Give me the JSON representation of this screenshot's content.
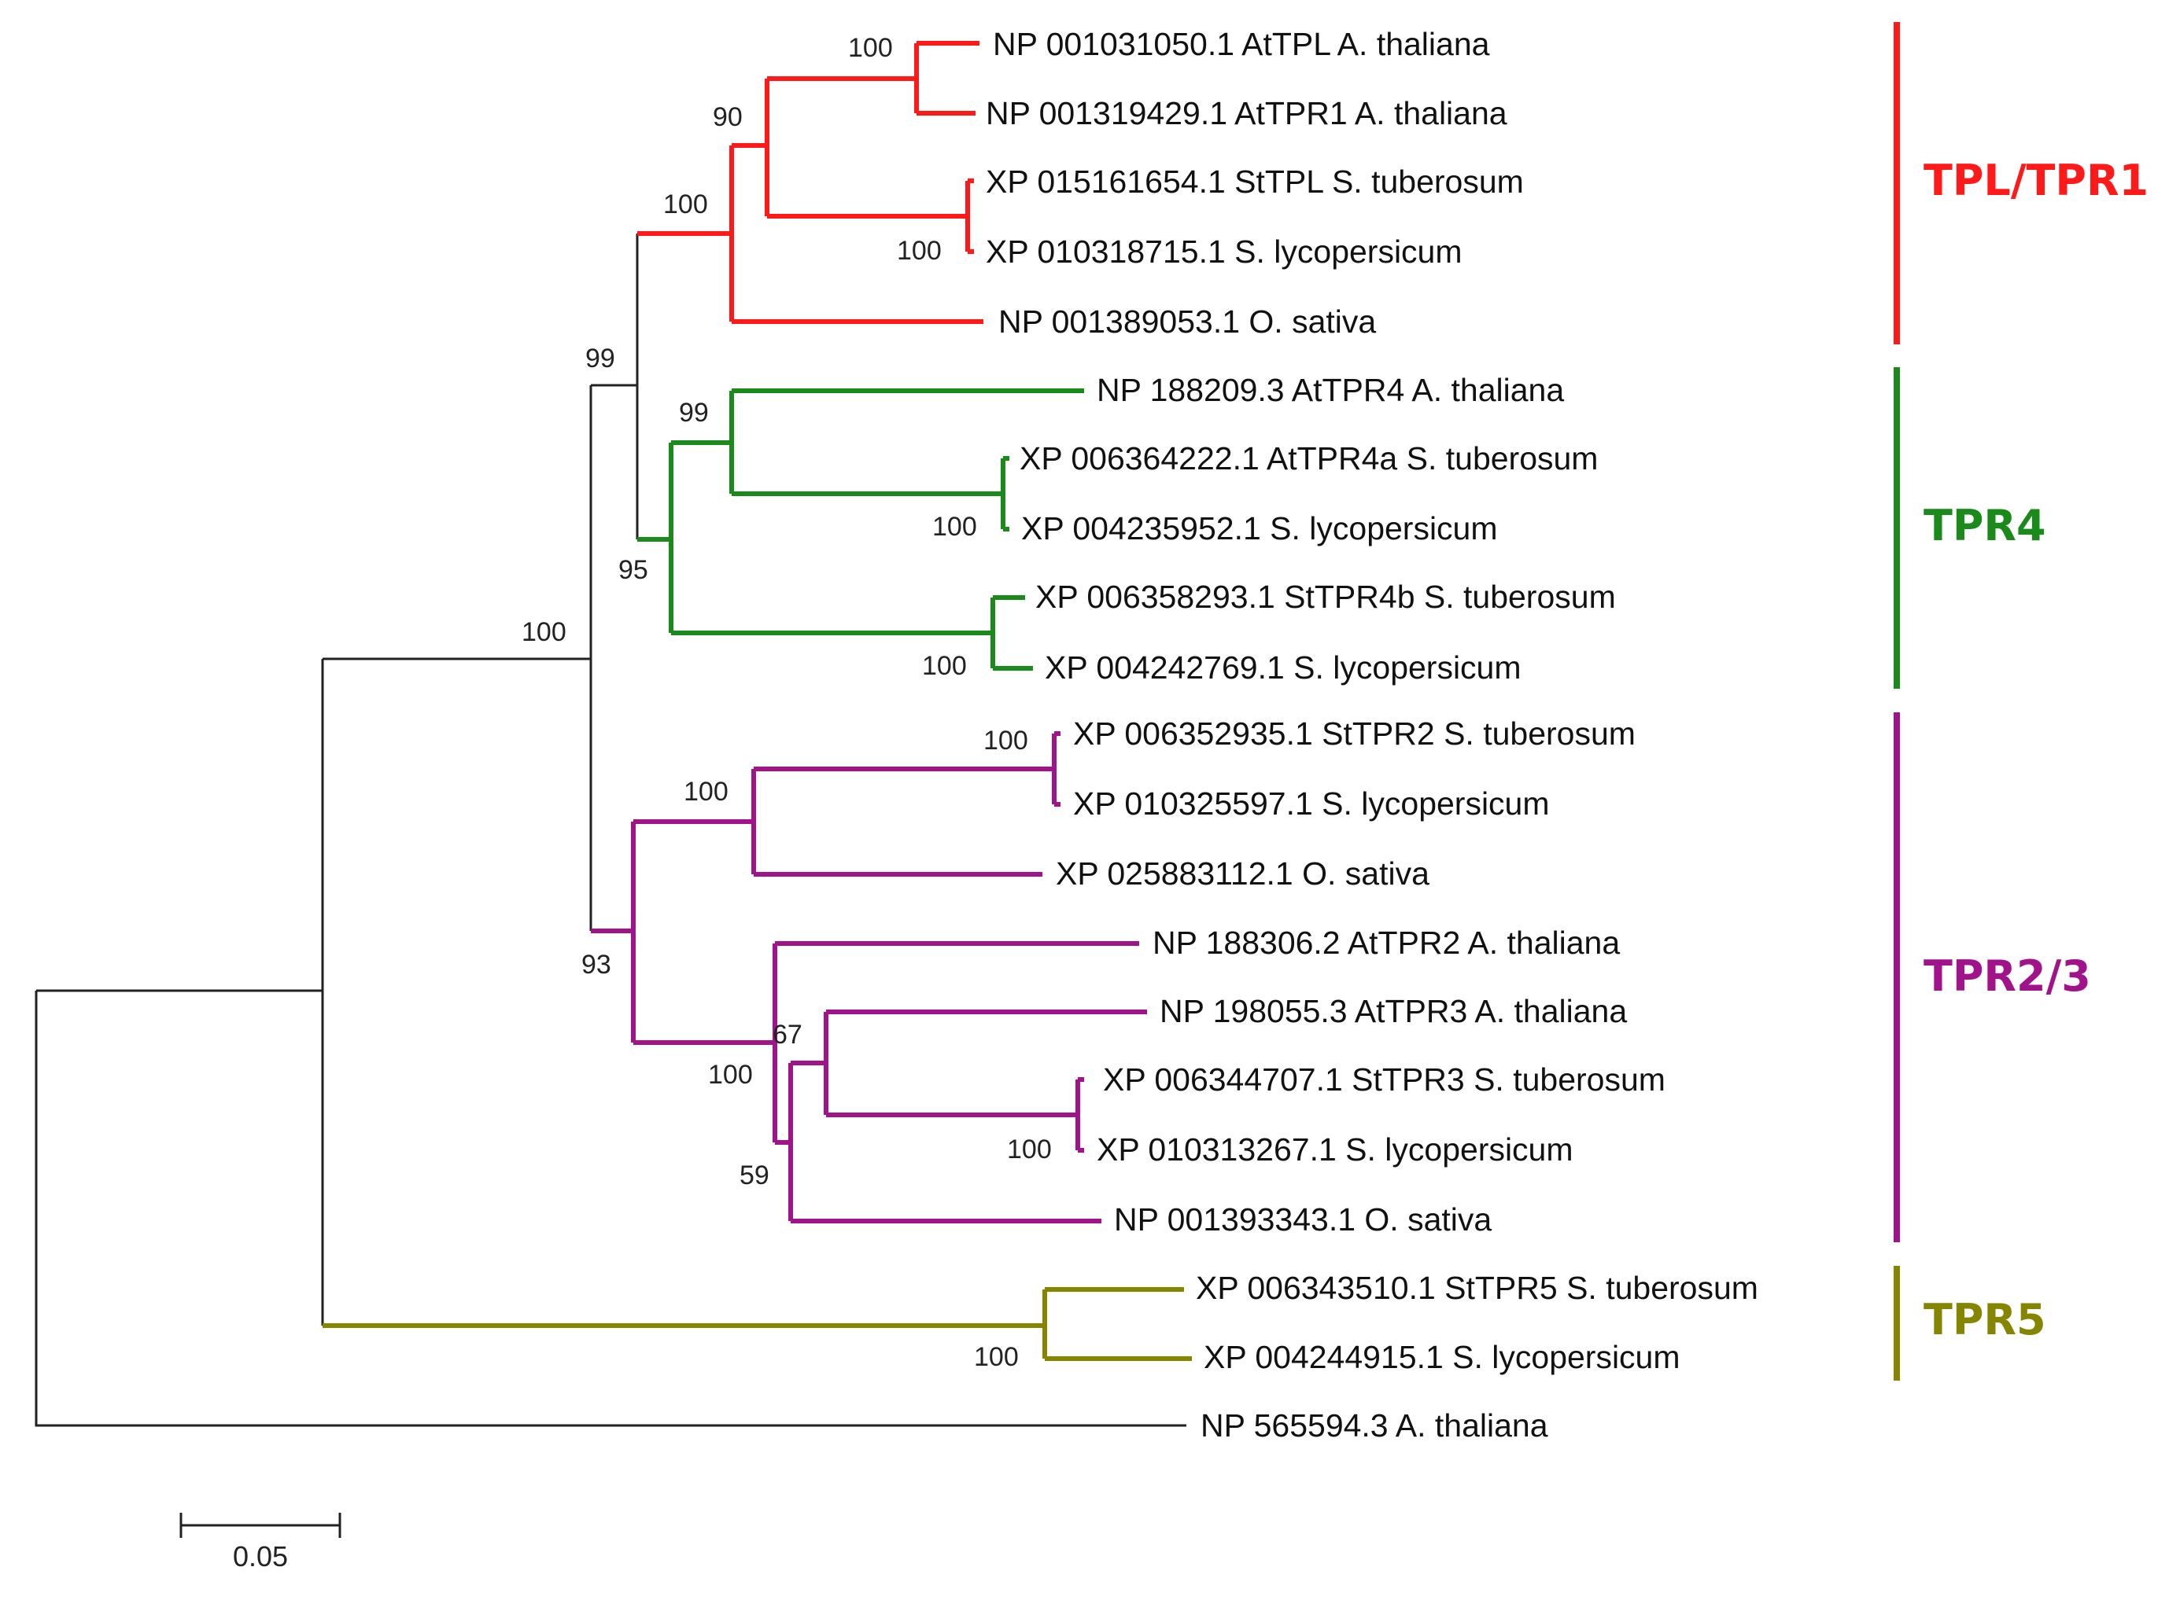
{
  "leaves": [
    {
      "label": "NP 001031050.1 AtTPL A. thaliana"
    },
    {
      "label": "NP 001319429.1 AtTPR1 A. thaliana"
    },
    {
      "label": "XP 015161654.1 StTPL S. tuberosum"
    },
    {
      "label": "XP 010318715.1 S. lycopersicum"
    },
    {
      "label": "NP 001389053.1 O. sativa"
    },
    {
      "label": "NP 188209.3 AtTPR4 A. thaliana"
    },
    {
      "label": "XP 006364222.1 AtTPR4a S. tuberosum"
    },
    {
      "label": "XP 004235952.1 S. lycopersicum"
    },
    {
      "label": "XP 006358293.1 StTPR4b S. tuberosum"
    },
    {
      "label": "XP 004242769.1 S. lycopersicum"
    },
    {
      "label": "XP 006352935.1 StTPR2 S. tuberosum"
    },
    {
      "label": "XP 010325597.1 S. lycopersicum"
    },
    {
      "label": "XP 025883112.1 O. sativa"
    },
    {
      "label": "NP 188306.2 AtTPR2 A. thaliana"
    },
    {
      "label": "NP 198055.3 AtTPR3 A. thaliana"
    },
    {
      "label": "XP 006344707.1 StTPR3 S. tuberosum"
    },
    {
      "label": "XP 010313267.1 S. lycopersicum"
    },
    {
      "label": "NP 001393343.1 O. sativa"
    },
    {
      "label": "XP 006343510.1 StTPR5 S. tuberosum"
    },
    {
      "label": "XP 004244915.1 S. lycopersicum"
    },
    {
      "label": "NP 565594.3 A. thaliana"
    }
  ],
  "bootstrap": [
    "100",
    "90",
    "100",
    "100",
    "99",
    "99",
    "100",
    "95",
    "100",
    "100",
    "100",
    "100",
    "93",
    "67",
    "100",
    "100",
    "59",
    "100"
  ],
  "clades": [
    {
      "name": "TPL/TPR1",
      "color": "#ff1a1a"
    },
    {
      "name": "TPR4",
      "color": "#1a8a1a"
    },
    {
      "name": "TPR2/3",
      "color": "#a0138a"
    },
    {
      "name": "TPR5",
      "color": "#858500"
    }
  ],
  "colors": {
    "tpl": "#ff1a1a",
    "tpr4": "#1a8a1a",
    "tpr23": "#a0138a",
    "tpr5": "#858500",
    "base": "#222222"
  },
  "scale_bar": {
    "label": "0.05"
  }
}
